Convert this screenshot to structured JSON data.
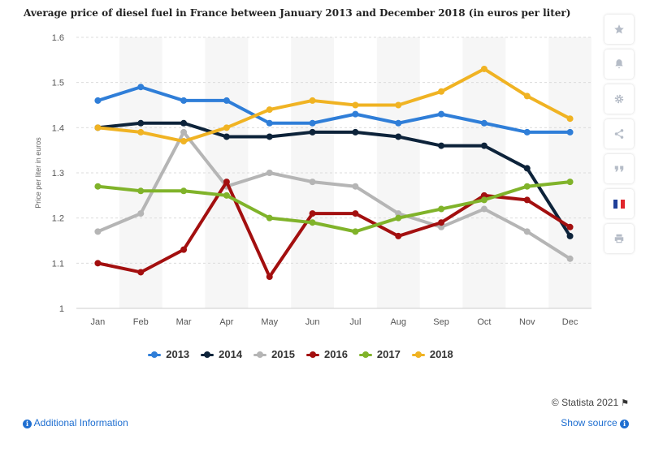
{
  "chart_data": {
    "type": "line",
    "title": "Average price of diesel fuel in France between January 2013 and December 2018 (in euros per liter)",
    "xlabel": "",
    "ylabel": "Price per liter in euros",
    "ylim": [
      1,
      1.6
    ],
    "yticks": [
      "1",
      "1.1",
      "1.2",
      "1.3",
      "1.4",
      "1.5",
      "1.6"
    ],
    "categories": [
      "Jan",
      "Feb",
      "Mar",
      "Apr",
      "May",
      "Jun",
      "Jul",
      "Aug",
      "Sep",
      "Oct",
      "Nov",
      "Dec"
    ],
    "grid": true,
    "legend_position": "bottom",
    "series": [
      {
        "name": "2013",
        "color": "#2f7ed8",
        "values": [
          1.46,
          1.49,
          1.46,
          1.46,
          1.41,
          1.41,
          1.43,
          1.41,
          1.43,
          1.41,
          1.39,
          1.39
        ]
      },
      {
        "name": "2014",
        "color": "#0d233a",
        "values": [
          1.4,
          1.41,
          1.41,
          1.38,
          1.38,
          1.39,
          1.39,
          1.38,
          1.36,
          1.36,
          1.31,
          1.16
        ]
      },
      {
        "name": "2015",
        "color": "#b5b5b5",
        "values": [
          1.17,
          1.21,
          1.39,
          1.27,
          1.3,
          1.28,
          1.27,
          1.21,
          1.18,
          1.22,
          1.17,
          1.11
        ]
      },
      {
        "name": "2016",
        "color": "#a30f0f",
        "values": [
          1.1,
          1.08,
          1.13,
          1.28,
          1.07,
          1.21,
          1.21,
          1.16,
          1.19,
          1.25,
          1.24,
          1.18
        ]
      },
      {
        "name": "2017",
        "color": "#80b32a",
        "values": [
          1.27,
          1.26,
          1.26,
          1.25,
          1.2,
          1.19,
          1.17,
          1.2,
          1.22,
          1.24,
          1.27,
          1.28
        ]
      },
      {
        "name": "2018",
        "color": "#f0b323",
        "values": [
          1.4,
          1.39,
          1.37,
          1.4,
          1.44,
          1.46,
          1.45,
          1.45,
          1.48,
          1.53,
          1.47,
          1.42
        ]
      }
    ]
  },
  "footer": {
    "credit": "© Statista 2021",
    "additional_info": "Additional Information",
    "show_source": "Show source"
  },
  "sidebar": {
    "buttons": [
      "star-icon",
      "bell-icon",
      "gear-icon",
      "share-icon",
      "quote-icon",
      "french-flag-icon",
      "print-icon"
    ],
    "flag_colors": [
      "#1f3f99",
      "#ffffff",
      "#e1262d"
    ]
  }
}
